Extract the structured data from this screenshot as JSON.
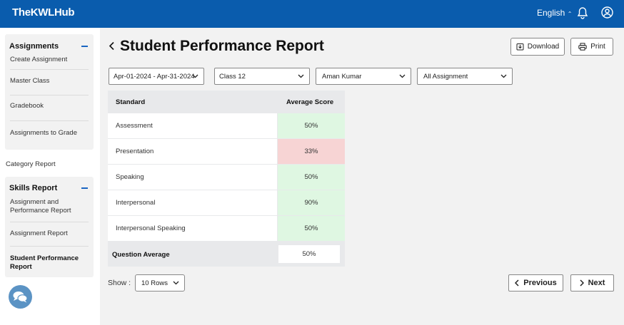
{
  "header": {
    "logo": "TheKWLHub",
    "language": "English"
  },
  "sidebar": {
    "assignments_title": "Assignments",
    "assignments_items": [
      "Create Assignment",
      "Master Class",
      "Gradebook",
      "Assignments to Grade"
    ],
    "category_report": "Category Report",
    "skills_title": "Skills Report",
    "skills_items": [
      "Assignment and Performance Report",
      "Assignment Report",
      "Student Performance Report"
    ]
  },
  "page": {
    "title": "Student Performance Report",
    "download": "Download",
    "print": "Print"
  },
  "filters": {
    "date_range": "Apr-01-2024 - Apr-31-2024",
    "class": "Class 12",
    "student": "Aman Kumar",
    "assignment": "All Assignment"
  },
  "table": {
    "headers": [
      "Standard",
      "Average Score"
    ],
    "rows": [
      {
        "standard": "Assessment",
        "score": "50%",
        "status": "good"
      },
      {
        "standard": "Presentation",
        "score": "33%",
        "status": "low",
        "extra": "-"
      },
      {
        "standard": "Speaking",
        "score": "50%",
        "status": "good"
      },
      {
        "standard": "Interpersonal",
        "score": "90%",
        "status": "good"
      },
      {
        "standard": "Interpersonal Speaking",
        "score": "50%",
        "status": "good"
      }
    ],
    "footer_label": "Question Average",
    "footer_value": "50%"
  },
  "pagination": {
    "show_label": "Show :",
    "rows_option": "10 Rows",
    "previous": "Previous",
    "next": "Next"
  },
  "colors": {
    "brand": "#0a5cad",
    "good": "#dff7e2",
    "low": "#f7d4d4"
  }
}
